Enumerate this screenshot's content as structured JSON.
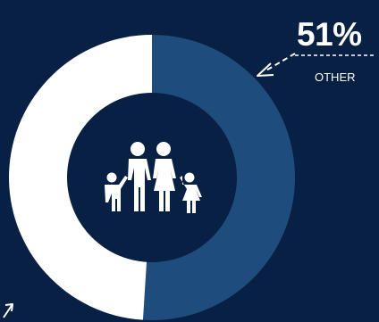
{
  "chart_data": {
    "type": "pie",
    "donut": true,
    "slices": [
      {
        "label": "OTHER",
        "value": 51,
        "display": "51%",
        "color": "#1e4c7c"
      },
      {
        "label": "",
        "value": 49,
        "color": "#ffffff"
      }
    ]
  },
  "colors": {
    "background": "#072043",
    "inner_circle": "#072043",
    "arrow": "#ffffff",
    "icon": "#ffffff"
  },
  "icons": {
    "center": "family-icon"
  }
}
